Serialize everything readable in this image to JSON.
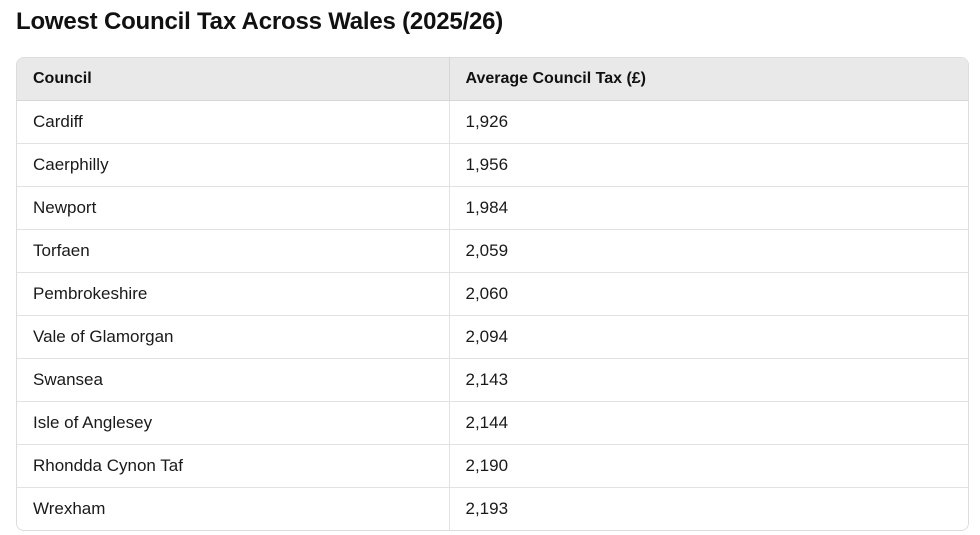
{
  "page": {
    "title": "Lowest Council Tax Across Wales (2025/26)"
  },
  "table": {
    "headers": [
      "Council",
      "Average Council Tax (£)"
    ],
    "rows": [
      [
        "Cardiff",
        "1,926"
      ],
      [
        "Caerphilly",
        "1,956"
      ],
      [
        "Newport",
        "1,984"
      ],
      [
        "Torfaen",
        "2,059"
      ],
      [
        "Pembrokeshire",
        "2,060"
      ],
      [
        "Vale of Glamorgan",
        "2,094"
      ],
      [
        "Swansea",
        "2,143"
      ],
      [
        "Isle of Anglesey",
        "2,144"
      ],
      [
        "Rhondda Cynon Taf",
        "2,190"
      ],
      [
        "Wrexham",
        "2,193"
      ]
    ]
  },
  "colors": {
    "header_bg": "#e9e9e9",
    "border": "#dcdcdc",
    "text": "#111111"
  }
}
